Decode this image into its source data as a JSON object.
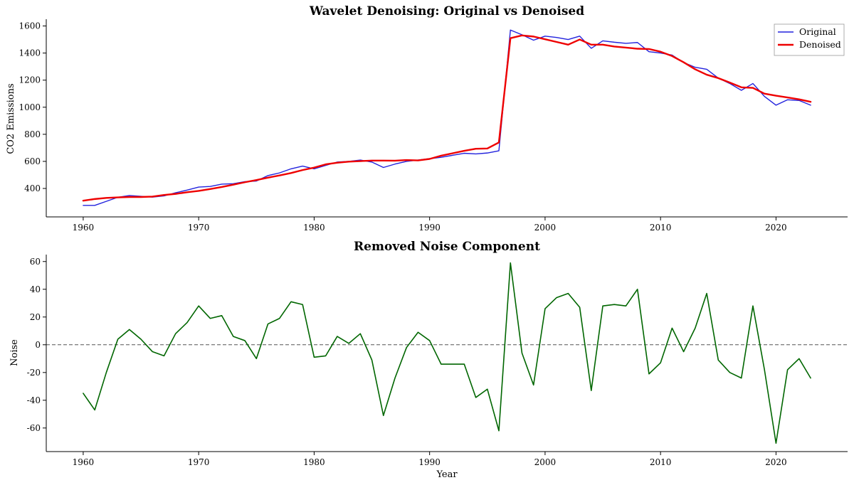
{
  "chart_data": [
    {
      "type": "line",
      "title": "Wavelet Denoising: Original vs Denoised",
      "xlabel": "",
      "ylabel": "CO2 Emissions",
      "xlim": [
        1956.8,
        2026.2
      ],
      "ylim": [
        190,
        1650
      ],
      "xticks": [
        1960,
        1970,
        1980,
        1990,
        2000,
        2010,
        2020
      ],
      "yticks": [
        400,
        600,
        800,
        1000,
        1200,
        1400,
        1600
      ],
      "grid": false,
      "legend_position": "top-right",
      "x": [
        1960,
        1961,
        1962,
        1963,
        1964,
        1965,
        1966,
        1967,
        1968,
        1969,
        1970,
        1971,
        1972,
        1973,
        1974,
        1975,
        1976,
        1977,
        1978,
        1979,
        1980,
        1981,
        1982,
        1983,
        1984,
        1985,
        1986,
        1987,
        1988,
        1989,
        1990,
        1991,
        1992,
        1993,
        1994,
        1995,
        1996,
        1997,
        1998,
        1999,
        2000,
        2001,
        2002,
        2003,
        2004,
        2005,
        2006,
        2007,
        2008,
        2009,
        2010,
        2011,
        2012,
        2013,
        2014,
        2015,
        2016,
        2017,
        2018,
        2019,
        2020,
        2021,
        2022,
        2023
      ],
      "series": [
        {
          "name": "Original",
          "color": "#2222dd",
          "width": 1.4,
          "values": [
            275,
            275,
            305,
            335,
            348,
            342,
            336,
            345,
            368,
            388,
            410,
            415,
            432,
            435,
            450,
            455,
            495,
            515,
            545,
            565,
            545,
            570,
            595,
            600,
            610,
            595,
            555,
            580,
            600,
            610,
            620,
            630,
            645,
            660,
            655,
            662,
            678,
            1570,
            1535,
            1495,
            1525,
            1515,
            1500,
            1525,
            1435,
            1490,
            1480,
            1472,
            1478,
            1410,
            1400,
            1385,
            1330,
            1295,
            1280,
            1215,
            1175,
            1125,
            1175,
            1080,
            1015,
            1055,
            1050,
            1015
          ]
        },
        {
          "name": "Denoised",
          "color": "#ee0000",
          "width": 2.4,
          "values": [
            310,
            322,
            330,
            334,
            337,
            337,
            340,
            352,
            360,
            372,
            382,
            396,
            411,
            428,
            446,
            462,
            480,
            496,
            514,
            536,
            554,
            578,
            590,
            598,
            602,
            606,
            606,
            605,
            610,
            607,
            618,
            642,
            660,
            678,
            693,
            695,
            740,
            1510,
            1530,
            1522,
            1502,
            1482,
            1462,
            1500,
            1462,
            1462,
            1448,
            1440,
            1432,
            1430,
            1410,
            1378,
            1332,
            1280,
            1240,
            1215,
            1182,
            1147,
            1143,
            1100,
            1085,
            1072,
            1058,
            1040
          ]
        }
      ]
    },
    {
      "type": "line",
      "title": "Removed Noise Component",
      "xlabel": "Year",
      "ylabel": "Noise",
      "xlim": [
        1956.8,
        2026.2
      ],
      "ylim": [
        -77,
        65
      ],
      "xticks": [
        1960,
        1970,
        1980,
        1990,
        2000,
        2010,
        2020
      ],
      "yticks": [
        -60,
        -40,
        -20,
        0,
        20,
        40,
        60
      ],
      "grid": false,
      "reference_line": {
        "y": 0,
        "style": "dashed",
        "color": "#555555"
      },
      "x": [
        1960,
        1961,
        1962,
        1963,
        1964,
        1965,
        1966,
        1967,
        1968,
        1969,
        1970,
        1971,
        1972,
        1973,
        1974,
        1975,
        1976,
        1977,
        1978,
        1979,
        1980,
        1981,
        1982,
        1983,
        1984,
        1985,
        1986,
        1987,
        1988,
        1989,
        1990,
        1991,
        1992,
        1993,
        1994,
        1995,
        1996,
        1997,
        1998,
        1999,
        2000,
        2001,
        2002,
        2003,
        2004,
        2005,
        2006,
        2007,
        2008,
        2009,
        2010,
        2011,
        2012,
        2013,
        2014,
        2015,
        2016,
        2017,
        2018,
        2019,
        2020,
        2021,
        2022,
        2023
      ],
      "series": [
        {
          "name": "",
          "color": "#006600",
          "width": 1.6,
          "values": [
            -35,
            -47,
            -20,
            4,
            11,
            4,
            -5,
            -8,
            8,
            16,
            28,
            19,
            21,
            6,
            3,
            -10,
            15,
            19,
            31,
            29,
            -9,
            -8,
            6,
            1,
            8,
            -11,
            -51,
            -24,
            -2,
            9,
            3,
            -14,
            -14,
            -14,
            -38,
            -32,
            -62,
            59,
            -6,
            -29,
            26,
            34,
            37,
            27,
            -33,
            28,
            29,
            28,
            40,
            -21,
            -13,
            12,
            -5,
            12,
            37,
            -11,
            -20,
            -24,
            28,
            -18,
            -71,
            -18,
            -10,
            -24
          ]
        }
      ]
    }
  ]
}
